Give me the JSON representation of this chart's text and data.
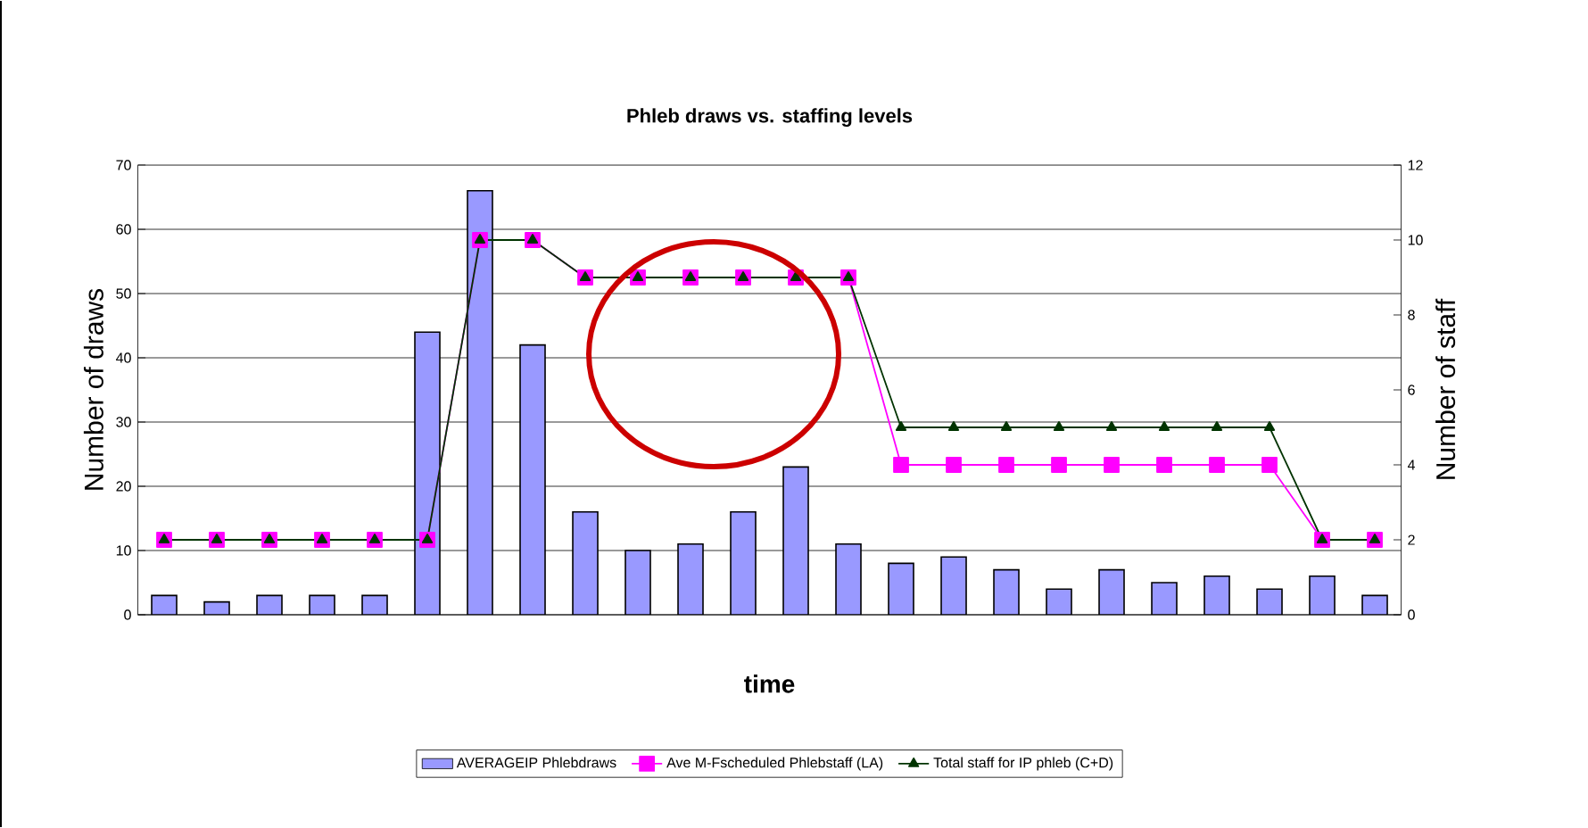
{
  "chart_data": {
    "type": "bar",
    "title": "Phleb draws vs. staffing levels",
    "xlabel": "time",
    "ylabel": "Number of draws",
    "y2label": "Number of staff",
    "categories": [
      null,
      null,
      null,
      null,
      null,
      null,
      null,
      null,
      null,
      null,
      null,
      null,
      null,
      null,
      null,
      null,
      null,
      null,
      null,
      null,
      null,
      null,
      null,
      null
    ],
    "series": [
      {
        "name": "AVERAGEIP Phlebdraws",
        "color": "#9999ff",
        "values": [
          3,
          2,
          3,
          3,
          3,
          44,
          66,
          42,
          16,
          10,
          11,
          16,
          23,
          11,
          8,
          9,
          7,
          4,
          7,
          5,
          6,
          4,
          6,
          3
        ]
      },
      {
        "name": "Ave M-Fscheduled Phlebstaff (LA)",
        "type": "line",
        "axis": "y2",
        "marker": "square",
        "color": "#ff00ff",
        "values": [
          2,
          2,
          2,
          2,
          2,
          2,
          10,
          10,
          9,
          9,
          9,
          9,
          9,
          9,
          4,
          4,
          4,
          4,
          4,
          4,
          4,
          4,
          2,
          2
        ]
      },
      {
        "name": "Total staff for IP phleb (C+D)",
        "type": "line",
        "axis": "y2",
        "marker": "triangle",
        "color": "#003300",
        "values": [
          2,
          2,
          2,
          2,
          2,
          2,
          10,
          10,
          9,
          9,
          9,
          9,
          9,
          9,
          5,
          5,
          5,
          5,
          5,
          5,
          5,
          5,
          2,
          2
        ]
      }
    ],
    "ylim": [
      0,
      70
    ],
    "yticks": [
      0,
      10,
      20,
      30,
      40,
      50,
      60,
      70
    ],
    "y2lim": [
      0,
      12
    ],
    "y2ticks": [
      0,
      2,
      4,
      6,
      8,
      10,
      12
    ],
    "grid": "y",
    "legend": "bottom"
  }
}
